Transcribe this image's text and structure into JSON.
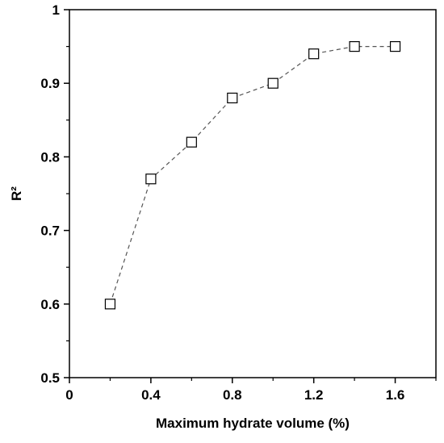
{
  "chart_data": {
    "type": "line",
    "title": "",
    "xlabel": "Maximum hydrate volume (%)",
    "ylabel": "R²",
    "xlim": [
      0,
      1.8
    ],
    "ylim": [
      0.5,
      1.0
    ],
    "x_ticks": [
      0,
      0.4,
      0.8,
      1.2,
      1.6
    ],
    "x_tick_labels": [
      "0",
      "0.4",
      "0.8",
      "1.2",
      "1.6"
    ],
    "y_ticks": [
      0.5,
      0.6,
      0.7,
      0.8,
      0.9,
      1.0
    ],
    "y_tick_labels": [
      "0.5",
      "0.6",
      "0.7",
      "0.8",
      "0.9",
      "1"
    ],
    "grid": false,
    "legend": "none",
    "marker": "open-square",
    "line_style": "dashed",
    "series": [
      {
        "x": [
          0.2,
          0.4,
          0.6,
          0.8,
          1.0,
          1.2,
          1.4,
          1.6
        ],
        "values": [
          0.6,
          0.77,
          0.82,
          0.88,
          0.9,
          0.94,
          0.95,
          0.95
        ]
      }
    ],
    "colors": {
      "line": "#555555",
      "marker_stroke": "#000000",
      "axis": "#000000"
    }
  }
}
